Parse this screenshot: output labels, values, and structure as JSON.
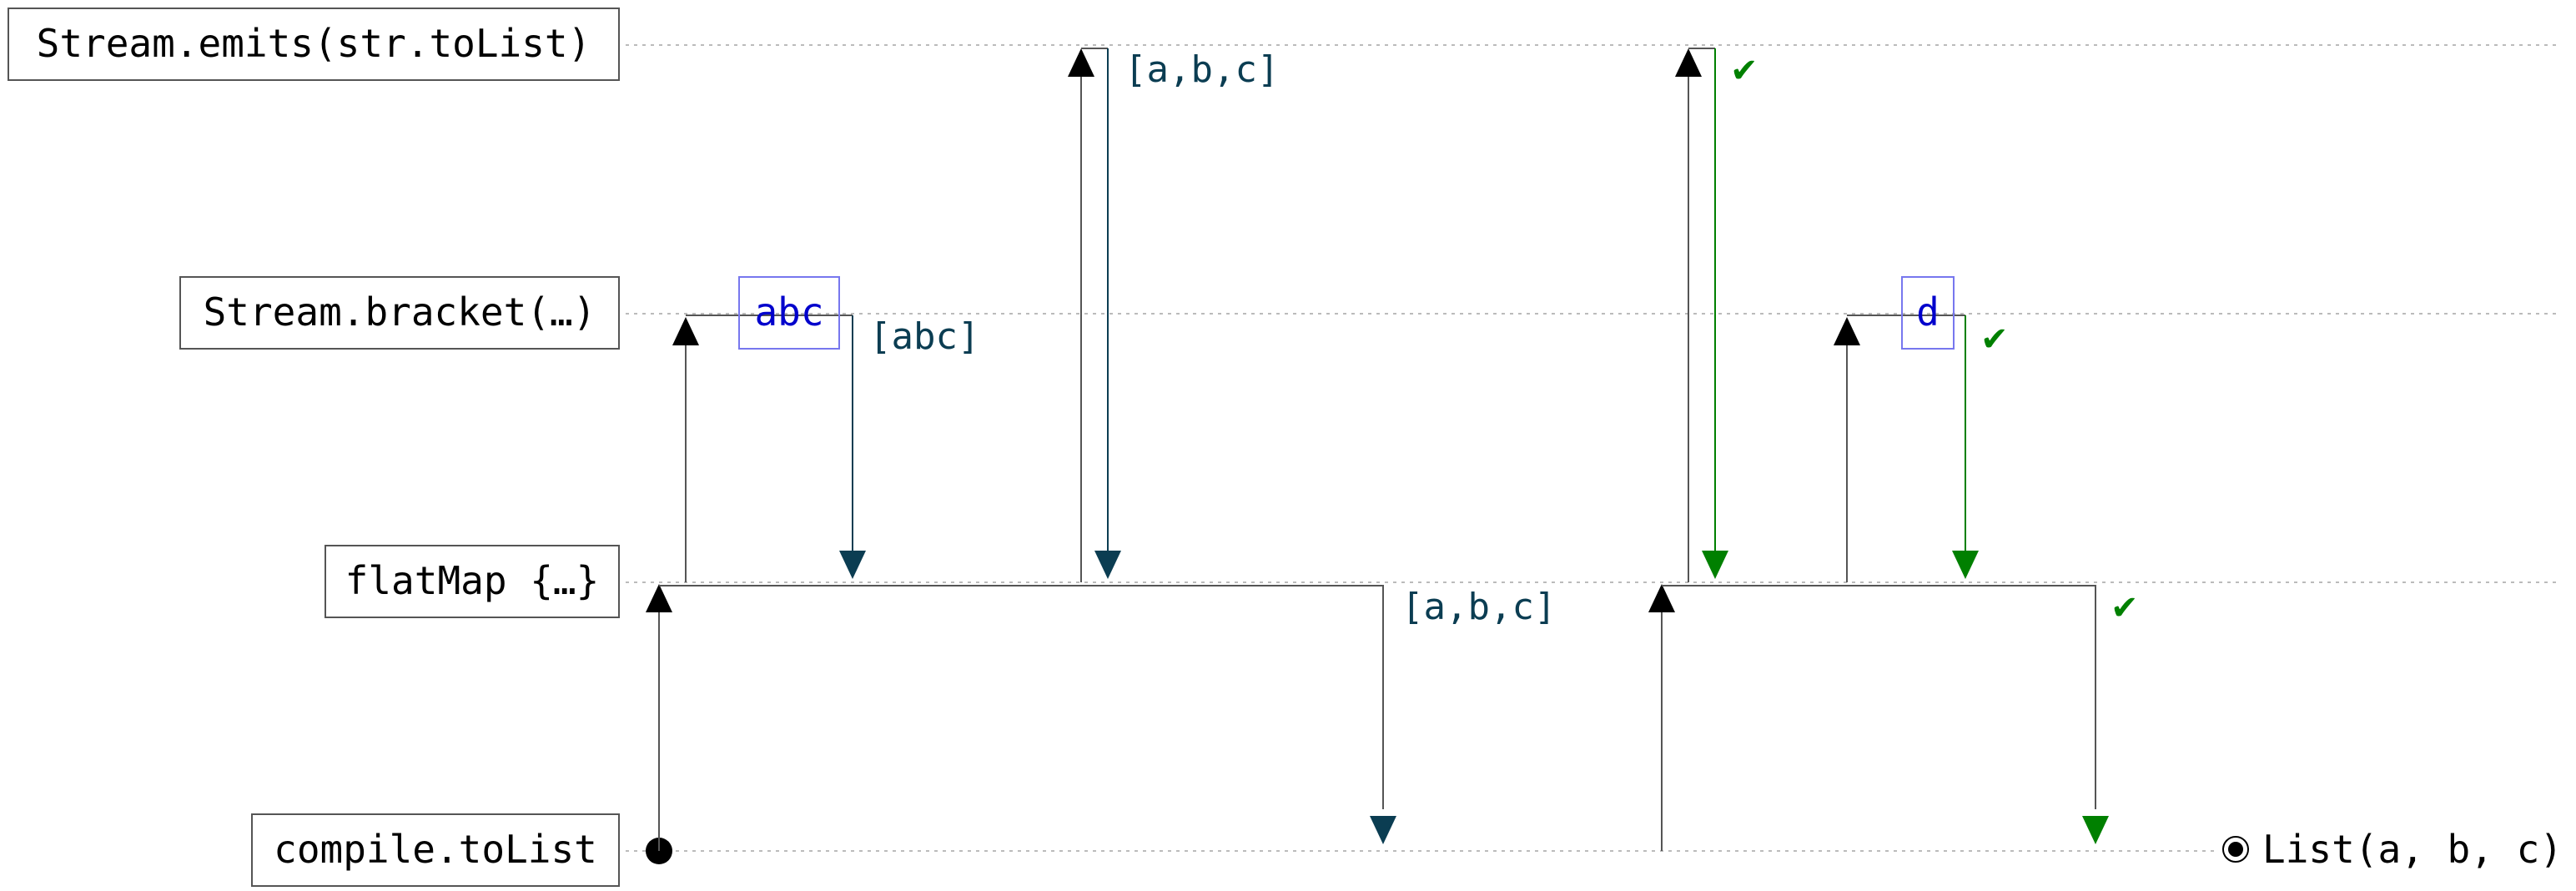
{
  "lanes": [
    {
      "id": "emits",
      "label": "Stream.emits(str.toList)"
    },
    {
      "id": "bracket",
      "label": "Stream.bracket(…)"
    },
    {
      "id": "flatmap",
      "label": "flatMap {…}"
    },
    {
      "id": "compile",
      "label": "compile.toList"
    }
  ],
  "resources": [
    {
      "id": "abc",
      "label": "abc"
    },
    {
      "id": "d",
      "label": "d"
    }
  ],
  "emissions": [
    {
      "id": "emit-abc-list",
      "label": "[abc]"
    },
    {
      "id": "emit-abc-elements",
      "label": "[a,b,c]"
    },
    {
      "id": "emit-flatmap-elements",
      "label": "[a,b,c]"
    }
  ],
  "completions": [
    {
      "id": "done-emits",
      "label": "✔"
    },
    {
      "id": "done-bracket",
      "label": "✔"
    },
    {
      "id": "done-flatmap",
      "label": "✔"
    }
  ],
  "result": {
    "label": "List(a, b, c)"
  },
  "colors": {
    "pull": "#000000",
    "emit": "#0b3d52",
    "done": "#008000",
    "resource": "#0000cc",
    "resource_border": "#7777ee",
    "guide": "#bbbbbb",
    "line": "#555555"
  }
}
